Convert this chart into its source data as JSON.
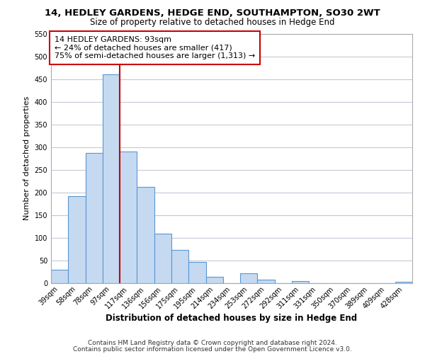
{
  "title": "14, HEDLEY GARDENS, HEDGE END, SOUTHAMPTON, SO30 2WT",
  "subtitle": "Size of property relative to detached houses in Hedge End",
  "xlabel": "Distribution of detached houses by size in Hedge End",
  "ylabel": "Number of detached properties",
  "footer_line1": "Contains HM Land Registry data © Crown copyright and database right 2024.",
  "footer_line2": "Contains public sector information licensed under the Open Government Licence v3.0.",
  "bar_labels": [
    "39sqm",
    "58sqm",
    "78sqm",
    "97sqm",
    "117sqm",
    "136sqm",
    "156sqm",
    "175sqm",
    "195sqm",
    "214sqm",
    "234sqm",
    "253sqm",
    "272sqm",
    "292sqm",
    "311sqm",
    "331sqm",
    "350sqm",
    "370sqm",
    "389sqm",
    "409sqm",
    "428sqm"
  ],
  "bar_values": [
    30,
    192,
    287,
    460,
    290,
    212,
    110,
    74,
    47,
    14,
    0,
    22,
    8,
    0,
    5,
    0,
    0,
    0,
    0,
    0,
    3
  ],
  "bar_color": "#c5d9f1",
  "bar_edge_color": "#5a96d2",
  "vline_color": "#cc0000",
  "annotation_title": "14 HEDLEY GARDENS: 93sqm",
  "annotation_line2": "← 24% of detached houses are smaller (417)",
  "annotation_line3": "75% of semi-detached houses are larger (1,313) →",
  "annotation_box_edge": "#cc0000",
  "ylim": [
    0,
    550
  ],
  "yticks": [
    0,
    50,
    100,
    150,
    200,
    250,
    300,
    350,
    400,
    450,
    500,
    550
  ],
  "background_color": "#ffffff",
  "grid_color": "#c8c8d8",
  "title_fontsize": 9.5,
  "subtitle_fontsize": 8.5
}
